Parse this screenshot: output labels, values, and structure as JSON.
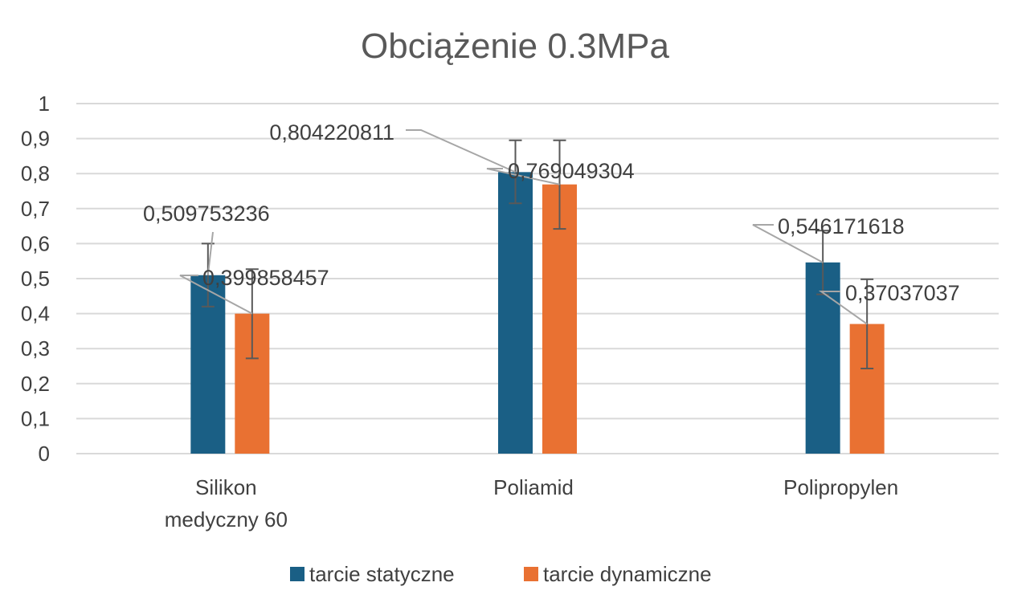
{
  "chart_data": {
    "type": "bar",
    "title": "Obciążenie  0.3MPa",
    "categories": [
      [
        "Silikon",
        "medyczny 60"
      ],
      [
        "Poliamid"
      ],
      [
        "Polipropylen"
      ]
    ],
    "series": [
      {
        "name": "tarcie statyczne",
        "color": "#1a5f85",
        "values": [
          0.509753236,
          0.804220811,
          0.546171618
        ],
        "labels": [
          "0,509753236",
          "0,804220811",
          "0,546171618"
        ],
        "err_low": [
          0.42,
          0.715,
          0.455
        ],
        "err_high": [
          0.6,
          0.895,
          0.637
        ]
      },
      {
        "name": "tarcie dynamiczne",
        "color": "#e97132",
        "values": [
          0.399858457,
          0.769049304,
          0.37037037
        ],
        "labels": [
          "0,399858457",
          "0,769049304",
          "0,37037037"
        ],
        "err_low": [
          0.272,
          0.642,
          0.243
        ],
        "err_high": [
          0.527,
          0.895,
          0.498
        ]
      }
    ],
    "ylim": [
      0,
      1
    ],
    "yticks": [
      0,
      0.1,
      0.2,
      0.3,
      0.4,
      0.5,
      0.6,
      0.7,
      0.8,
      0.9,
      1
    ],
    "ytick_labels": [
      "0",
      "0,1",
      "0,2",
      "0,3",
      "0,4",
      "0,5",
      "0,6",
      "0,7",
      "0,8",
      "0,9",
      "1"
    ],
    "xlabel": "",
    "ylabel": "",
    "grid": true,
    "legend_position": "bottom"
  }
}
